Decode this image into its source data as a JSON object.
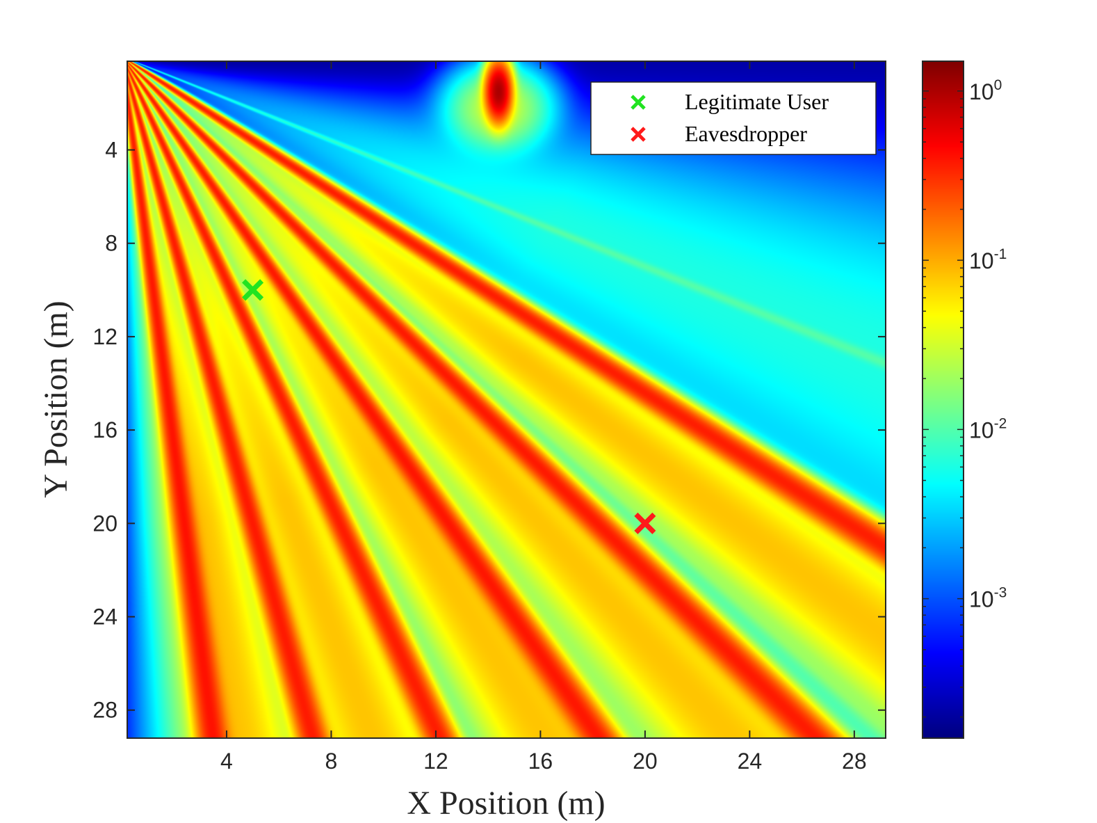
{
  "chart_data": {
    "type": "heatmap",
    "title": "",
    "xlabel": "X Position (m)",
    "ylabel": "Y Position (m)",
    "xlim": [
      0.2,
      29.2
    ],
    "ylim": [
      0.2,
      29.2
    ],
    "y_axis_direction": "reversed (0 at top)",
    "x_ticks": [
      4,
      8,
      12,
      16,
      20,
      24,
      28
    ],
    "y_ticks": [
      4,
      8,
      12,
      16,
      20,
      24,
      28
    ],
    "grid": false,
    "colormap": "jet",
    "colorbar": {
      "scale": "log",
      "range": [
        0.00015,
        1.5
      ],
      "ticks": [
        {
          "value": 0.001,
          "base": "10",
          "exp": "-3"
        },
        {
          "value": 0.01,
          "base": "10",
          "exp": "-2"
        },
        {
          "value": 0.1,
          "base": "10",
          "exp": "-1"
        },
        {
          "value": 1,
          "base": "10",
          "exp": "0"
        }
      ]
    },
    "features": {
      "beam_families": [
        {
          "kind": "narrow",
          "slopes": [
            8.4,
            4.0,
            2.4,
            1.6,
            1.1,
            0.72
          ],
          "peak": 0.35
        },
        {
          "kind": "wide",
          "slopes": [
            6.5,
            3.05,
            1.8,
            1.25,
            0.85
          ],
          "peak": 0.08
        },
        {
          "kind": "thin-diagonal",
          "slopes": [
            0.99,
            0.45
          ],
          "peak": 0.004
        }
      ],
      "top_hotspot": {
        "x": 14.4,
        "y": 1.5,
        "peak": 1.0
      }
    },
    "markers": [
      {
        "name": "Legitimate User",
        "x": 5,
        "y": 10,
        "color": "#21e321"
      },
      {
        "name": "Eavesdropper",
        "x": 20,
        "y": 20,
        "color": "#ff1a1a"
      }
    ],
    "legend": {
      "position": "top-right",
      "entries": [
        {
          "label": "Legitimate User",
          "color": "#21e321"
        },
        {
          "label": "Eavesdropper",
          "color": "#ff1a1a"
        }
      ]
    }
  }
}
